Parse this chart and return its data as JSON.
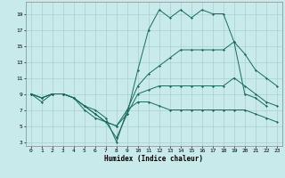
{
  "xlabel": "Humidex (Indice chaleur)",
  "bg_color": "#c8eaea",
  "grid_color": "#aacfcf",
  "line_color": "#1a6b5a",
  "xlim": [
    -0.5,
    23.5
  ],
  "ylim": [
    2.5,
    20.5
  ],
  "xticks": [
    0,
    1,
    2,
    3,
    4,
    5,
    6,
    7,
    8,
    9,
    10,
    11,
    12,
    13,
    14,
    15,
    16,
    17,
    18,
    19,
    20,
    21,
    22,
    23
  ],
  "yticks": [
    3,
    5,
    7,
    9,
    11,
    13,
    15,
    17,
    19
  ],
  "series": [
    {
      "x": [
        0,
        1,
        2,
        3,
        4,
        5,
        6,
        7,
        8,
        9,
        10,
        11,
        12,
        13,
        14,
        15,
        16,
        17,
        18,
        19,
        20,
        21,
        22
      ],
      "y": [
        9,
        8,
        9,
        9,
        8.5,
        7,
        6,
        5.5,
        3.5,
        6.5,
        12,
        17,
        19.5,
        18.5,
        19.5,
        18.5,
        19.5,
        19,
        19,
        15.5,
        9,
        8.5,
        7.5
      ]
    },
    {
      "x": [
        0,
        1,
        2,
        3,
        4,
        5,
        6,
        7,
        8,
        9,
        10,
        11,
        12,
        13,
        14,
        15,
        16,
        17,
        18,
        19,
        20,
        21,
        22,
        23
      ],
      "y": [
        9,
        8.5,
        9,
        9,
        8.5,
        7.5,
        6.5,
        5.5,
        5,
        7,
        10,
        11.5,
        12.5,
        13.5,
        14.5,
        14.5,
        14.5,
        14.5,
        14.5,
        15.5,
        14,
        12,
        11,
        10
      ]
    },
    {
      "x": [
        0,
        1,
        2,
        3,
        4,
        5,
        6,
        7,
        8,
        9,
        10,
        11,
        12,
        13,
        14,
        15,
        16,
        17,
        18,
        19,
        20,
        21,
        22,
        23
      ],
      "y": [
        9,
        8.5,
        9,
        9,
        8.5,
        7.5,
        6.5,
        5.5,
        5,
        6.5,
        9,
        9.5,
        10,
        10,
        10,
        10,
        10,
        10,
        10,
        11,
        10,
        9,
        8,
        7.5
      ]
    },
    {
      "x": [
        0,
        1,
        2,
        3,
        4,
        5,
        6,
        7,
        8,
        9,
        10,
        11,
        12,
        13,
        14,
        15,
        16,
        17,
        18,
        19,
        20,
        21,
        22,
        23
      ],
      "y": [
        9,
        8.5,
        9,
        9,
        8.5,
        7.5,
        7,
        6,
        3,
        7,
        8,
        8,
        7.5,
        7,
        7,
        7,
        7,
        7,
        7,
        7,
        7,
        6.5,
        6,
        5.5
      ]
    }
  ]
}
